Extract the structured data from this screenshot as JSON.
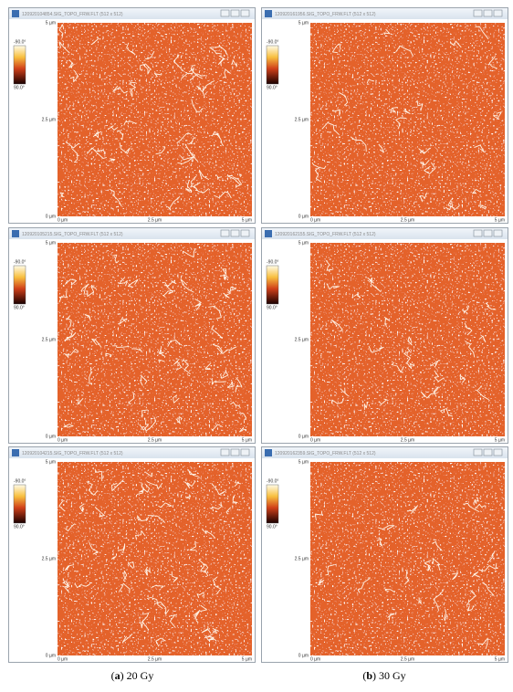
{
  "panels": [
    {
      "title": "120920104854.SIG_TOPO_FRW.FLT (512 x 512)",
      "scale": [
        "-90.0°",
        "90.0°"
      ],
      "yaxis": [
        "5 µm",
        "2.5 µm",
        "0 µm"
      ],
      "xaxis": [
        "0 µm",
        "2.5 µm",
        "5 µm"
      ]
    },
    {
      "title": "120920161956.SIG_TOPO_FRW.FLT (512 x 512)",
      "scale": [
        "-90.0°",
        "90.0°"
      ],
      "yaxis": [
        "5 µm",
        "2.5 µm",
        "0 µm"
      ],
      "xaxis": [
        "0 µm",
        "2.5 µm",
        "5 µm"
      ]
    },
    {
      "title": "120920105215.SIG_TOPO_FRW.FLT (512 x 512)",
      "scale": [
        "-90.0°",
        "90.0°"
      ],
      "yaxis": [
        "5 µm",
        "2.5 µm",
        "0 µm"
      ],
      "xaxis": [
        "0 µm",
        "2.5 µm",
        "5 µm"
      ]
    },
    {
      "title": "120920162155.SIG_TOPO_FRW.FLT (512 x 512)",
      "scale": [
        "-90.0°",
        "90.0°"
      ],
      "yaxis": [
        "5 µm",
        "2.5 µm",
        "0 µm"
      ],
      "xaxis": [
        "0 µm",
        "2.5 µm",
        "5 µm"
      ]
    },
    {
      "title": "120920104215.SIG_TOPO_FRW.FLT (512 x 512)",
      "scale": [
        "-90.0°",
        "90.0°"
      ],
      "yaxis": [
        "5 µm",
        "2.5 µm",
        "0 µm"
      ],
      "xaxis": [
        "0 µm",
        "2.5 µm",
        "5 µm"
      ]
    },
    {
      "title": "120920162359.SIG_TOPO_FRW.FLT (512 x 512)",
      "scale": [
        "-90.0°",
        "90.0°"
      ],
      "yaxis": [
        "5 µm",
        "2.5 µm",
        "0 µm"
      ],
      "xaxis": [
        "0 µm",
        "2.5 µm",
        "5 µm"
      ]
    }
  ],
  "captions": [
    {
      "prefix": "(",
      "letter": "a",
      "suffix": ") 20 Gy"
    },
    {
      "prefix": "(",
      "letter": "b",
      "suffix": ") 30 Gy"
    }
  ]
}
